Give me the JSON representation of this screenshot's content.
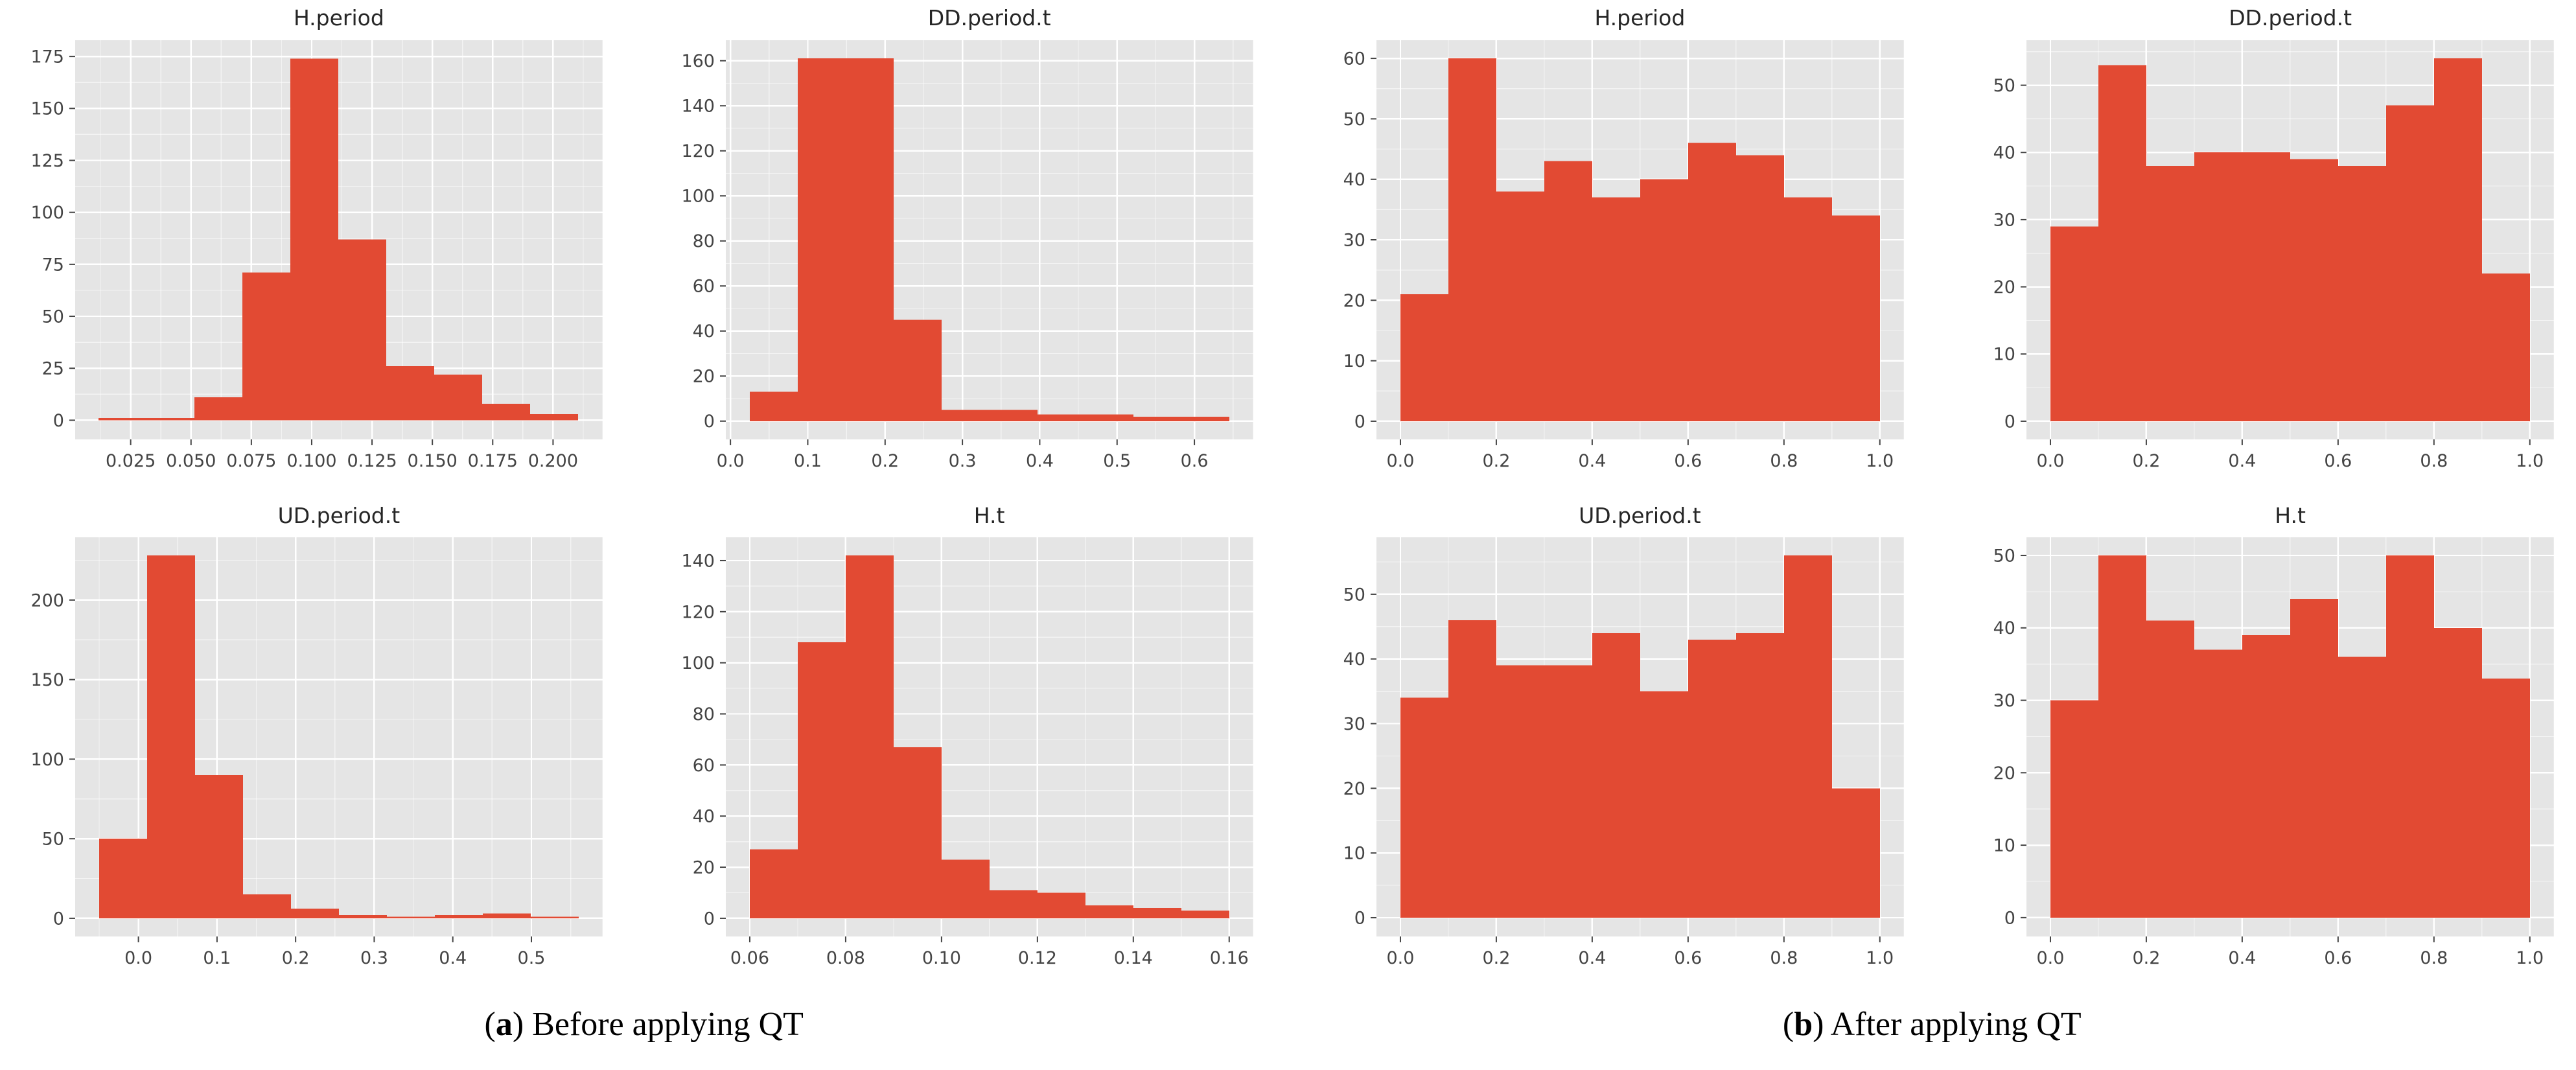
{
  "style": {
    "bar_color": "#E24A33",
    "panel_bg": "#E5E5E5",
    "grid_major": "#FFFFFF",
    "grid_minor": "#FFFFFF",
    "tick_color": "#444444",
    "title_color": "#262626"
  },
  "captions": {
    "a": {
      "open": "(",
      "letter": "a",
      "rest": ") Before applying QT"
    },
    "b": {
      "open": "(",
      "letter": "b",
      "rest": ") After applying QT"
    }
  },
  "chart_data": {
    "type": "histogram-grid",
    "layout": {
      "rows": 2,
      "cols": 4,
      "left_group": "before QT",
      "right_group": "after QT"
    },
    "charts": [
      {
        "name": "h-period-before-qt",
        "type": "histogram",
        "title": "H.period",
        "bin_start": 0.0117,
        "bin_width": 0.01986,
        "counts": [
          1,
          1,
          11,
          71,
          174,
          87,
          26,
          22,
          8,
          3
        ],
        "xlim": [
          0.002,
          0.2205
        ],
        "ylim": [
          -9.2,
          182.8
        ],
        "x_ticks": [
          0.025,
          0.05,
          0.075,
          0.1,
          0.125,
          0.15,
          0.175,
          0.2
        ],
        "x_tick_labels": [
          "0.025",
          "0.050",
          "0.075",
          "0.100",
          "0.125",
          "0.150",
          "0.175",
          "0.200"
        ],
        "y_ticks": [
          0,
          25,
          50,
          75,
          100,
          125,
          150,
          175
        ],
        "y_tick_labels": [
          "0",
          "25",
          "50",
          "75",
          "100",
          "125",
          "150",
          "175"
        ]
      },
      {
        "name": "dd-period-t-before-qt",
        "type": "histogram",
        "title": "DD.period.t",
        "bin_start": 0.025,
        "bin_width": 0.062,
        "counts": [
          13,
          161,
          161,
          45,
          5,
          5,
          3,
          3,
          2,
          2
        ],
        "xlim": [
          -0.006,
          0.676
        ],
        "ylim": [
          -8.1,
          169.1
        ],
        "x_ticks": [
          0.0,
          0.1,
          0.2,
          0.3,
          0.4,
          0.5,
          0.6
        ],
        "x_tick_labels": [
          "0.0",
          "0.1",
          "0.2",
          "0.3",
          "0.4",
          "0.5",
          "0.6"
        ],
        "y_ticks": [
          0,
          20,
          40,
          60,
          80,
          100,
          120,
          140,
          160
        ],
        "y_tick_labels": [
          "0",
          "20",
          "40",
          "60",
          "80",
          "100",
          "120",
          "140",
          "160"
        ]
      },
      {
        "name": "h-period-after-qt",
        "type": "histogram",
        "title": "H.period",
        "bin_start": 0.0,
        "bin_width": 0.1,
        "counts": [
          21,
          60,
          38,
          43,
          37,
          40,
          46,
          44,
          37,
          34
        ],
        "xlim": [
          -0.05,
          1.05
        ],
        "ylim": [
          -3.0,
          63.0
        ],
        "x_ticks": [
          0.0,
          0.2,
          0.4,
          0.6,
          0.8,
          1.0
        ],
        "x_tick_labels": [
          "0.0",
          "0.2",
          "0.4",
          "0.6",
          "0.8",
          "1.0"
        ],
        "y_ticks": [
          0,
          10,
          20,
          30,
          40,
          50,
          60
        ],
        "y_tick_labels": [
          "0",
          "10",
          "20",
          "30",
          "40",
          "50",
          "60"
        ]
      },
      {
        "name": "dd-period-t-after-qt",
        "type": "histogram",
        "title": "DD.period.t",
        "bin_start": 0.0,
        "bin_width": 0.1,
        "counts": [
          29,
          53,
          38,
          40,
          40,
          39,
          38,
          47,
          54,
          22
        ],
        "xlim": [
          -0.05,
          1.05
        ],
        "ylim": [
          -2.7,
          56.7
        ],
        "x_ticks": [
          0.0,
          0.2,
          0.4,
          0.6,
          0.8,
          1.0
        ],
        "x_tick_labels": [
          "0.0",
          "0.2",
          "0.4",
          "0.6",
          "0.8",
          "1.0"
        ],
        "y_ticks": [
          0,
          10,
          20,
          30,
          40,
          50
        ],
        "y_tick_labels": [
          "0",
          "10",
          "20",
          "30",
          "40",
          "50"
        ]
      },
      {
        "name": "ud-period-t-before-qt",
        "type": "histogram",
        "title": "UD.period.t",
        "bin_start": -0.05,
        "bin_width": 0.061,
        "counts": [
          50,
          228,
          90,
          15,
          6,
          2,
          1,
          2,
          3,
          1
        ],
        "xlim": [
          -0.0805,
          0.5905
        ],
        "ylim": [
          -11.4,
          239.4
        ],
        "x_ticks": [
          0.0,
          0.1,
          0.2,
          0.3,
          0.4,
          0.5
        ],
        "x_tick_labels": [
          "0.0",
          "0.1",
          "0.2",
          "0.3",
          "0.4",
          "0.5"
        ],
        "y_ticks": [
          0,
          50,
          100,
          150,
          200
        ],
        "y_tick_labels": [
          "0",
          "50",
          "100",
          "150",
          "200"
        ]
      },
      {
        "name": "h-t-before-qt",
        "type": "histogram",
        "title": "H.t",
        "bin_start": 0.06,
        "bin_width": 0.01,
        "counts": [
          27,
          108,
          142,
          67,
          23,
          11,
          10,
          5,
          4,
          3
        ],
        "xlim": [
          0.055,
          0.165
        ],
        "ylim": [
          -7.1,
          149.1
        ],
        "x_ticks": [
          0.06,
          0.08,
          0.1,
          0.12,
          0.14,
          0.16
        ],
        "x_tick_labels": [
          "0.06",
          "0.08",
          "0.10",
          "0.12",
          "0.14",
          "0.16"
        ],
        "y_ticks": [
          0,
          20,
          40,
          60,
          80,
          100,
          120,
          140
        ],
        "y_tick_labels": [
          "0",
          "20",
          "40",
          "60",
          "80",
          "100",
          "120",
          "140"
        ]
      },
      {
        "name": "ud-period-t-after-qt",
        "type": "histogram",
        "title": "UD.period.t",
        "bin_start": 0.0,
        "bin_width": 0.1,
        "counts": [
          34,
          46,
          39,
          39,
          44,
          35,
          43,
          44,
          56,
          20
        ],
        "xlim": [
          -0.05,
          1.05
        ],
        "ylim": [
          -2.9,
          58.8
        ],
        "x_ticks": [
          0.0,
          0.2,
          0.4,
          0.6,
          0.8,
          1.0
        ],
        "x_tick_labels": [
          "0.0",
          "0.2",
          "0.4",
          "0.6",
          "0.8",
          "1.0"
        ],
        "y_ticks": [
          0,
          10,
          20,
          30,
          40,
          50
        ],
        "y_tick_labels": [
          "0",
          "10",
          "20",
          "30",
          "40",
          "50"
        ]
      },
      {
        "name": "h-t-after-qt",
        "type": "histogram",
        "title": "H.t",
        "bin_start": 0.0,
        "bin_width": 0.1,
        "counts": [
          30,
          50,
          41,
          37,
          39,
          44,
          36,
          50,
          40,
          33
        ],
        "xlim": [
          -0.05,
          1.05
        ],
        "ylim": [
          -2.6,
          52.5
        ],
        "x_ticks": [
          0.0,
          0.2,
          0.4,
          0.6,
          0.8,
          1.0
        ],
        "x_tick_labels": [
          "0.0",
          "0.2",
          "0.4",
          "0.6",
          "0.8",
          "1.0"
        ],
        "y_ticks": [
          0,
          10,
          20,
          30,
          40,
          50
        ],
        "y_tick_labels": [
          "0",
          "10",
          "20",
          "30",
          "40",
          "50"
        ]
      }
    ]
  }
}
